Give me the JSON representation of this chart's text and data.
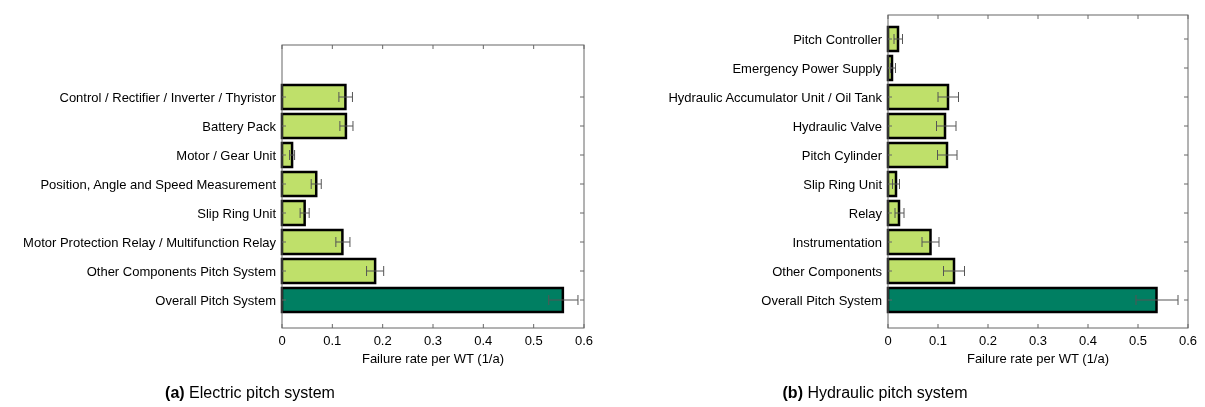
{
  "chart_data": [
    {
      "type": "bar",
      "orientation": "horizontal",
      "title": "(a) Electric pitch system",
      "xlabel": "Failure rate per WT (1/a)",
      "categories": [
        "Control / Rectifier / Inverter / Thyristor",
        "Battery Pack",
        "Motor / Gear Unit",
        "Position, Angle and Speed Measurement",
        "Slip Ring Unit",
        "Motor Protection Relay / Multifunction Relay",
        "Other Components Pitch System",
        "Overall Pitch System"
      ],
      "values": [
        0.126,
        0.127,
        0.02,
        0.068,
        0.045,
        0.12,
        0.185,
        0.558
      ],
      "errors": [
        [
          0.113,
          0.14
        ],
        [
          0.115,
          0.141
        ],
        [
          0.015,
          0.025
        ],
        [
          0.058,
          0.078
        ],
        [
          0.036,
          0.054
        ],
        [
          0.107,
          0.135
        ],
        [
          0.168,
          0.202
        ],
        [
          0.53,
          0.588
        ]
      ],
      "colors": [
        "#bfe06a",
        "#bfe06a",
        "#bfe06a",
        "#bfe06a",
        "#bfe06a",
        "#bfe06a",
        "#bfe06a",
        "#007f62"
      ],
      "xlim": [
        0,
        0.6
      ],
      "xticks": [
        0,
        0.1,
        0.2,
        0.3,
        0.4,
        0.5,
        0.6
      ],
      "grid": false
    },
    {
      "type": "bar",
      "orientation": "horizontal",
      "title": "(b) Hydraulic pitch system",
      "xlabel": "Failure rate per WT (1/a)",
      "categories": [
        "Pitch Controller",
        "Emergency Power Supply",
        "Hydraulic Accumulator Unit / Oil Tank",
        "Hydraulic Valve",
        "Pitch Cylinder",
        "Slip Ring Unit",
        "Relay",
        "Instrumentation",
        "Other Components",
        "Overall Pitch System"
      ],
      "values": [
        0.02,
        0.008,
        0.12,
        0.114,
        0.118,
        0.016,
        0.022,
        0.085,
        0.132,
        0.537
      ],
      "errors": [
        [
          0.012,
          0.029
        ],
        [
          0.005,
          0.015
        ],
        [
          0.1,
          0.141
        ],
        [
          0.097,
          0.136
        ],
        [
          0.099,
          0.138
        ],
        [
          0.009,
          0.023
        ],
        [
          0.014,
          0.032
        ],
        [
          0.068,
          0.102
        ],
        [
          0.111,
          0.153
        ],
        [
          0.496,
          0.58
        ]
      ],
      "colors": [
        "#bfe06a",
        "#bfe06a",
        "#bfe06a",
        "#bfe06a",
        "#bfe06a",
        "#bfe06a",
        "#bfe06a",
        "#bfe06a",
        "#bfe06a",
        "#007f62"
      ],
      "xlim": [
        0,
        0.6
      ],
      "xticks": [
        0,
        0.1,
        0.2,
        0.3,
        0.4,
        0.5,
        0.6
      ],
      "grid": false
    }
  ]
}
